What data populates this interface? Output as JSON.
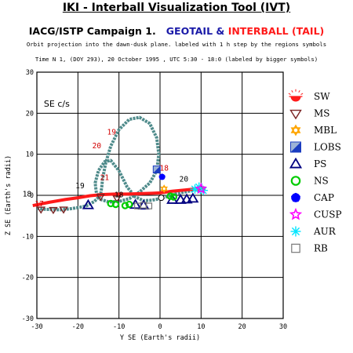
{
  "header": {
    "title": "IKI - Interball Visualization Tool (IVT)",
    "campaign_prefix": "IACG/ISTP Campaign 1.",
    "campaign_sc1": "GEOTAIL",
    "campaign_amp": "&",
    "campaign_sc2": "INTERBALL (TAIL)",
    "subtitle": "Orbit projection into the dawn-dusk plane. labeled with 1 h step by the regions symbols",
    "time_info": "Time N 1, (DOY 293), 20 October 1995 , UTC 5:30 - 18:0 (labeled by bigger symbols)"
  },
  "colors": {
    "geotail": "#4f8b8b",
    "interball": "#ff1a1a",
    "sw": "#ff1a1a",
    "ms": "#7a2323",
    "mbl": "#ffa600",
    "lobs": "#1a3cc0",
    "ps": "#000080",
    "ns": "#00cc00",
    "cap": "#0000ff",
    "cusp": "#ff00ff",
    "aur": "#00e5ff",
    "rb": "#777777"
  },
  "chart_data": {
    "type": "scatter",
    "frame_label": "SE c/s",
    "xlabel": "Y SE (Earth's radii)",
    "ylabel": "Z SE (Earth's radii)",
    "xlim": [
      -30,
      30
    ],
    "ylim": [
      -30,
      30
    ],
    "xticks": [
      -30,
      -20,
      -10,
      0,
      10,
      20,
      30
    ],
    "yticks": [
      -30,
      -20,
      -10,
      0,
      10,
      20,
      30
    ],
    "grid": true,
    "legend_position": "right",
    "legend": [
      {
        "key": "SW",
        "label": "SW",
        "icon": "half-sun-icon"
      },
      {
        "key": "MS",
        "label": "MS",
        "icon": "triangle-down-icon"
      },
      {
        "key": "MBL",
        "label": "MBL",
        "icon": "star-of-david-icon"
      },
      {
        "key": "LOBS",
        "label": "LOBS",
        "icon": "split-square-icon"
      },
      {
        "key": "PS",
        "label": "PS",
        "icon": "triangle-up-icon"
      },
      {
        "key": "NS",
        "label": "NS",
        "icon": "circle-icon"
      },
      {
        "key": "CAP",
        "label": "CAP",
        "icon": "filled-pentagon-icon"
      },
      {
        "key": "CUSP",
        "label": "CUSP",
        "icon": "star-icon"
      },
      {
        "key": "AUR",
        "label": "AUR",
        "icon": "asterisk-icon"
      },
      {
        "key": "RB",
        "label": "RB",
        "icon": "square-icon"
      }
    ],
    "series": [
      {
        "spacecraft": "GEOTAIL",
        "x": [
          -30.0,
          -28.0,
          -26.0,
          -24.0,
          -22.0,
          -20.0,
          -18.0,
          -16.0,
          -14.5,
          -14.2,
          -14.0,
          -13.2,
          -12.0,
          -10.0,
          -7.5,
          -5.0,
          -2.5,
          -0.8,
          -0.3,
          -0.8,
          -2.5,
          -5.0,
          -7.5,
          -10.0,
          -12.5,
          -14.5,
          -15.5,
          -15.8,
          -15.0,
          -13.5,
          -12.0,
          -10.0,
          -8.0,
          -6.0,
          -4.0,
          -2.0,
          0.0,
          2.0,
          4.0,
          6.0,
          8.0,
          10.0,
          11.0
        ],
        "y": [
          -3.2,
          -3.4,
          -3.5,
          -3.5,
          -3.3,
          -3.0,
          -2.6,
          -1.5,
          0.0,
          2.0,
          4.0,
          8.0,
          12.0,
          16.0,
          18.5,
          19.0,
          17.5,
          14.0,
          10.0,
          6.0,
          3.0,
          0.8,
          -0.8,
          -1.5,
          -1.6,
          -1.0,
          0.6,
          3.0,
          6.0,
          8.2,
          8.5,
          6.0,
          2.0,
          -0.4,
          -1.3,
          -1.2,
          -0.8,
          -0.2,
          0.4,
          0.8,
          1.2,
          1.5,
          1.7
        ],
        "labels": [
          {
            "text": "17",
            "x": -29.4,
            "y": -2.7
          },
          {
            "text": "19",
            "x": -11.8,
            "y": 14.8
          },
          {
            "text": "20",
            "x": -15.4,
            "y": 11.5
          },
          {
            "text": "21",
            "x": -13.5,
            "y": 3.7
          }
        ]
      },
      {
        "spacecraft": "INTERBALL",
        "x": [
          -31.0,
          -27.0,
          -23.0,
          -20.0,
          -17.0,
          -14.0,
          -11.0,
          -8.0,
          -5.0,
          -2.0,
          0.0,
          3.0,
          6.0,
          9.0,
          11.0
        ],
        "y": [
          -2.5,
          -1.7,
          -1.0,
          -0.6,
          -0.1,
          0.2,
          0.3,
          0.3,
          0.4,
          0.5,
          0.6,
          1.0,
          1.3,
          1.6,
          1.8
        ],
        "labels": [
          {
            "text": "18",
            "x": -32.4,
            "y": -0.3
          },
          {
            "text": "19",
            "x": -19.5,
            "y": 1.7
          },
          {
            "text": "18",
            "x": 1.0,
            "y": 6.0
          }
        ]
      },
      {
        "spacecraft": "neutral",
        "labels": [
          {
            "text": "18",
            "x": -10.0,
            "y": -0.5
          },
          {
            "text": "20",
            "x": 5.8,
            "y": 3.3
          }
        ]
      }
    ],
    "region_markers": [
      {
        "region": "MS",
        "x": -29.0,
        "y": -3.4
      },
      {
        "region": "MS",
        "x": -26.0,
        "y": -3.5
      },
      {
        "region": "MS",
        "x": -23.5,
        "y": -3.4
      },
      {
        "region": "MS",
        "x": -14.5,
        "y": -0.3
      },
      {
        "region": "MS",
        "x": -10.5,
        "y": -0.7
      },
      {
        "region": "PS",
        "x": -17.5,
        "y": -2.4
      },
      {
        "region": "PS",
        "x": -6.0,
        "y": -2.3
      },
      {
        "region": "PS",
        "x": -4.0,
        "y": -2.5
      },
      {
        "region": "PS",
        "x": 3.0,
        "y": -1.1
      },
      {
        "region": "PS",
        "x": 5.0,
        "y": -1.1
      },
      {
        "region": "PS",
        "x": 6.5,
        "y": -1.0
      },
      {
        "region": "PS",
        "x": 8.0,
        "y": -0.8
      },
      {
        "region": "NS",
        "x": -12.0,
        "y": -2.0
      },
      {
        "region": "NS",
        "x": -10.8,
        "y": -2.2
      },
      {
        "region": "NS",
        "x": -8.5,
        "y": -2.5
      },
      {
        "region": "NS",
        "x": -7.5,
        "y": -2.2
      },
      {
        "region": "NS",
        "x": 2.5,
        "y": -0.2
      },
      {
        "region": "NS",
        "x": 3.3,
        "y": -0.4
      },
      {
        "region": "RB",
        "x": -5.5,
        "y": -2.6
      },
      {
        "region": "RB",
        "x": -4.0,
        "y": -2.4
      },
      {
        "region": "RB",
        "x": -2.7,
        "y": -2.6
      },
      {
        "region": "CAP",
        "x": 0.5,
        "y": 4.5
      },
      {
        "region": "LOBS",
        "x": -0.8,
        "y": 6.3
      },
      {
        "region": "MBL",
        "x": 1.0,
        "y": 1.6
      },
      {
        "region": "AUR",
        "x": 8.5,
        "y": 1.5
      },
      {
        "region": "AUR",
        "x": 9.5,
        "y": 2.0
      },
      {
        "region": "AUR",
        "x": 10.5,
        "y": 1.2
      },
      {
        "region": "CUSP",
        "x": 10.0,
        "y": 1.6
      }
    ]
  }
}
